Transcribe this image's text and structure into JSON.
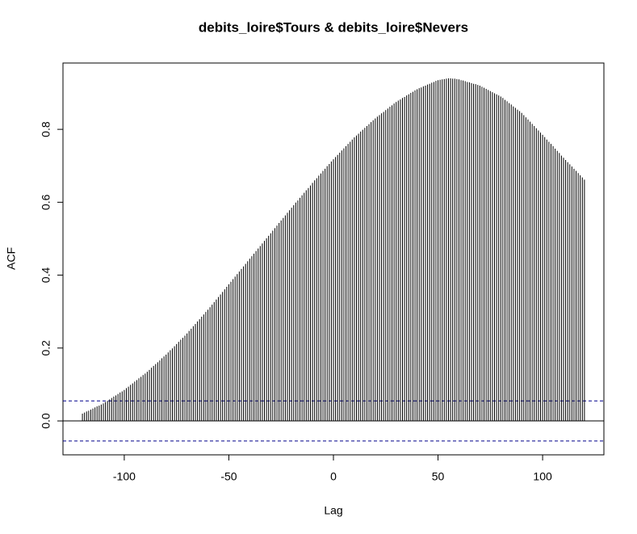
{
  "chart_data": {
    "type": "acf",
    "title": "debits_loire$Tours & debits_loire$Nevers",
    "x_label": "Lag",
    "y_label": "ACF",
    "x": [
      -120,
      -119,
      -118,
      -117,
      -116,
      -115,
      -114,
      -113,
      -112,
      -111,
      -110,
      -109,
      -108,
      -107,
      -106,
      -105,
      -104,
      -103,
      -102,
      -101,
      -100,
      -99,
      -98,
      -97,
      -96,
      -95,
      -94,
      -93,
      -92,
      -91,
      -90,
      -89,
      -88,
      -87,
      -86,
      -85,
      -84,
      -83,
      -82,
      -81,
      -80,
      -79,
      -78,
      -77,
      -76,
      -75,
      -74,
      -73,
      -72,
      -71,
      -70,
      -69,
      -68,
      -67,
      -66,
      -65,
      -64,
      -63,
      -62,
      -61,
      -60,
      -59,
      -58,
      -57,
      -56,
      -55,
      -54,
      -53,
      -52,
      -51,
      -50,
      -49,
      -48,
      -47,
      -46,
      -45,
      -44,
      -43,
      -42,
      -41,
      -40,
      -39,
      -38,
      -37,
      -36,
      -35,
      -34,
      -33,
      -32,
      -31,
      -30,
      -29,
      -28,
      -27,
      -26,
      -25,
      -24,
      -23,
      -22,
      -21,
      -20,
      -19,
      -18,
      -17,
      -16,
      -15,
      -14,
      -13,
      -12,
      -11,
      -10,
      -9,
      -8,
      -7,
      -6,
      -5,
      -4,
      -3,
      -2,
      -1,
      0,
      1,
      2,
      3,
      4,
      5,
      6,
      7,
      8,
      9,
      10,
      11,
      12,
      13,
      14,
      15,
      16,
      17,
      18,
      19,
      20,
      21,
      22,
      23,
      24,
      25,
      26,
      27,
      28,
      29,
      30,
      31,
      32,
      33,
      34,
      35,
      36,
      37,
      38,
      39,
      40,
      41,
      42,
      43,
      44,
      45,
      46,
      47,
      48,
      49,
      50,
      51,
      52,
      53,
      54,
      55,
      56,
      57,
      58,
      59,
      60,
      61,
      62,
      63,
      64,
      65,
      66,
      67,
      68,
      69,
      70,
      71,
      72,
      73,
      74,
      75,
      76,
      77,
      78,
      79,
      80,
      81,
      82,
      83,
      84,
      85,
      86,
      87,
      88,
      89,
      90,
      91,
      92,
      93,
      94,
      95,
      96,
      97,
      98,
      99,
      100,
      101,
      102,
      103,
      104,
      105,
      106,
      107,
      108,
      109,
      110,
      111,
      112,
      113,
      114,
      115,
      116,
      117,
      118,
      119,
      120
    ],
    "values": [
      0.02,
      0.023,
      0.026,
      0.028,
      0.031,
      0.034,
      0.037,
      0.04,
      0.042,
      0.045,
      0.048,
      0.052,
      0.055,
      0.059,
      0.063,
      0.067,
      0.07,
      0.074,
      0.078,
      0.081,
      0.085,
      0.09,
      0.094,
      0.099,
      0.103,
      0.108,
      0.112,
      0.117,
      0.121,
      0.126,
      0.13,
      0.135,
      0.14,
      0.146,
      0.151,
      0.156,
      0.161,
      0.166,
      0.172,
      0.177,
      0.182,
      0.188,
      0.194,
      0.199,
      0.205,
      0.211,
      0.217,
      0.223,
      0.228,
      0.234,
      0.24,
      0.247,
      0.253,
      0.26,
      0.266,
      0.273,
      0.279,
      0.286,
      0.292,
      0.299,
      0.305,
      0.312,
      0.319,
      0.326,
      0.333,
      0.34,
      0.347,
      0.354,
      0.361,
      0.368,
      0.375,
      0.382,
      0.389,
      0.396,
      0.403,
      0.41,
      0.417,
      0.424,
      0.431,
      0.438,
      0.445,
      0.452,
      0.459,
      0.466,
      0.473,
      0.48,
      0.487,
      0.494,
      0.501,
      0.508,
      0.515,
      0.522,
      0.529,
      0.536,
      0.543,
      0.55,
      0.557,
      0.564,
      0.571,
      0.578,
      0.585,
      0.592,
      0.599,
      0.605,
      0.612,
      0.619,
      0.626,
      0.633,
      0.639,
      0.646,
      0.653,
      0.66,
      0.666,
      0.673,
      0.679,
      0.686,
      0.692,
      0.699,
      0.705,
      0.712,
      0.718,
      0.724,
      0.73,
      0.736,
      0.742,
      0.748,
      0.754,
      0.76,
      0.766,
      0.772,
      0.778,
      0.783,
      0.788,
      0.794,
      0.799,
      0.804,
      0.809,
      0.814,
      0.82,
      0.825,
      0.83,
      0.835,
      0.839,
      0.844,
      0.848,
      0.853,
      0.857,
      0.862,
      0.866,
      0.871,
      0.875,
      0.879,
      0.882,
      0.886,
      0.889,
      0.893,
      0.896,
      0.9,
      0.903,
      0.907,
      0.91,
      0.913,
      0.915,
      0.918,
      0.92,
      0.923,
      0.925,
      0.928,
      0.93,
      0.933,
      0.935,
      0.936,
      0.937,
      0.938,
      0.939,
      0.94,
      0.94,
      0.939,
      0.939,
      0.938,
      0.937,
      0.935,
      0.934,
      0.932,
      0.93,
      0.929,
      0.927,
      0.925,
      0.924,
      0.922,
      0.92,
      0.917,
      0.914,
      0.911,
      0.908,
      0.905,
      0.902,
      0.899,
      0.896,
      0.893,
      0.89,
      0.886,
      0.881,
      0.877,
      0.872,
      0.868,
      0.863,
      0.859,
      0.854,
      0.85,
      0.845,
      0.839,
      0.833,
      0.827,
      0.821,
      0.815,
      0.809,
      0.803,
      0.797,
      0.791,
      0.785,
      0.779,
      0.772,
      0.766,
      0.76,
      0.754,
      0.747,
      0.741,
      0.735,
      0.728,
      0.722,
      0.716,
      0.71,
      0.704,
      0.698,
      0.692,
      0.686,
      0.68,
      0.674,
      0.668,
      0.662
    ],
    "conf_limits": [
      -0.055,
      0.055
    ],
    "color": "#000000",
    "conf_color": "#00008b",
    "xlim": [
      -129.3,
      129.3
    ],
    "ylim": [
      -0.093,
      0.982
    ],
    "xticks": [
      -100,
      -50,
      0,
      50,
      100
    ],
    "yticks": [
      {
        "value": 0,
        "label": "0.0"
      },
      0.2,
      0.4,
      0.6,
      0.8
    ]
  }
}
